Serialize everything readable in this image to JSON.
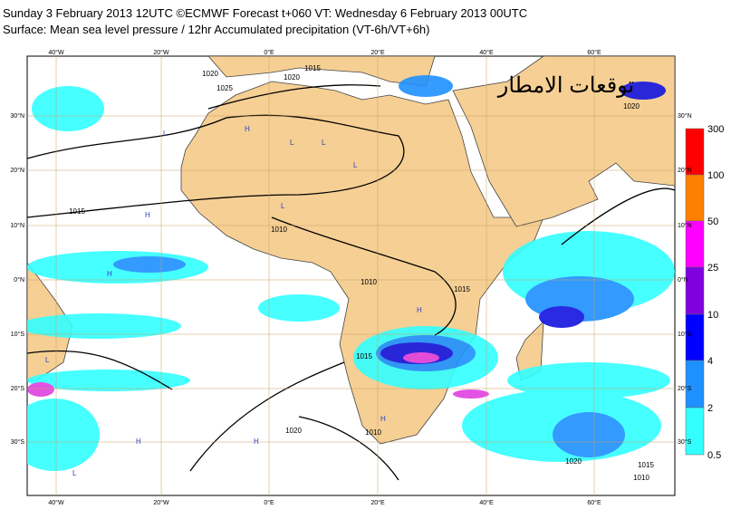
{
  "header": {
    "line1": "Sunday 3 February 2013 12UTC ©ECMWF Forecast t+060 VT: Wednesday 6 February 2013 00UTC",
    "line2": "Surface: Mean sea level pressure / 12hr Accumulated precipitation (VT-6h/VT+6h)"
  },
  "map": {
    "lon_labels": [
      "40°W",
      "20°W",
      "0°E",
      "20°E",
      "40°E",
      "60°E"
    ],
    "lat_labels": [
      "30°N",
      "20°N",
      "10°N",
      "0°N",
      "10°S",
      "20°S",
      "30°S"
    ],
    "overlay_text": "توقعات الامطار",
    "isobar_labels": [
      "1015",
      "1020",
      "1025",
      "1020",
      "1015",
      "1010",
      "1010",
      "1015",
      "1015",
      "1020",
      "1010",
      "1020",
      "1020",
      "1015",
      "1010"
    ],
    "pressure_centers": [
      "H",
      "L",
      "L",
      "L",
      "L",
      "H",
      "L",
      "H",
      "H",
      "L",
      "H",
      "H",
      "L",
      "H"
    ]
  },
  "legend": {
    "labels": [
      "300",
      "100",
      "50",
      "25",
      "10",
      "4",
      "2",
      "0.5"
    ]
  }
}
